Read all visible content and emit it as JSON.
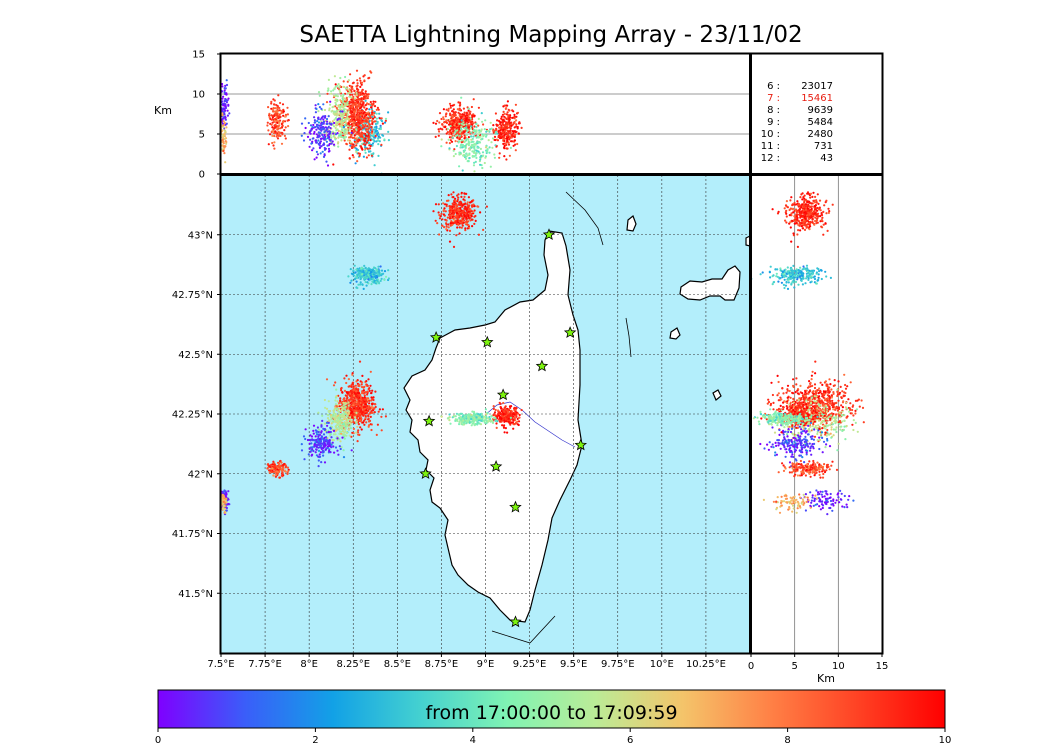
{
  "title": "SAETTA Lightning Mapping Array - 23/11/02",
  "chart_data": {
    "type": "scatter",
    "title": "SAETTA Lightning Mapping Array - 23/11/02",
    "panels": {
      "map": {
        "x_ticks": [
          "7.5°E",
          "7.75°E",
          "8°E",
          "8.25°E",
          "8.5°E",
          "8.75°E",
          "9°E",
          "9.25°E",
          "9.5°E",
          "9.75°E",
          "10°E",
          "10.25°E"
        ],
        "x_tick_values": [
          7.5,
          7.75,
          8.0,
          8.25,
          8.5,
          8.75,
          9.0,
          9.25,
          9.5,
          9.75,
          10.0,
          10.25
        ],
        "y_ticks": [
          "43°N",
          "42.75°N",
          "42.5°N",
          "42.25°N",
          "42°N",
          "41.75°N",
          "41.5°N"
        ],
        "y_tick_values": [
          43.0,
          42.75,
          42.5,
          42.25,
          42.0,
          41.75,
          41.5
        ],
        "xlim": [
          7.5,
          10.5
        ],
        "ylim": [
          41.25,
          43.25
        ],
        "grid": true
      },
      "lon_alt": {
        "ylabel": "Km",
        "y_ticks": [
          "0",
          "5",
          "10",
          "15"
        ],
        "y_tick_values": [
          0,
          5,
          10,
          15
        ],
        "ylim": [
          0,
          15
        ]
      },
      "alt_lat": {
        "xlabel": "Km",
        "x_ticks": [
          "0",
          "5",
          "10",
          "15"
        ],
        "x_tick_values": [
          0,
          5,
          10,
          15
        ],
        "xlim": [
          0,
          15
        ]
      }
    },
    "stations": [
      {
        "lon": 9.36,
        "lat": 43.0
      },
      {
        "lon": 9.48,
        "lat": 42.59
      },
      {
        "lon": 8.72,
        "lat": 42.57
      },
      {
        "lon": 9.01,
        "lat": 42.55
      },
      {
        "lon": 9.32,
        "lat": 42.45
      },
      {
        "lon": 9.1,
        "lat": 42.33
      },
      {
        "lon": 8.68,
        "lat": 42.22
      },
      {
        "lon": 9.54,
        "lat": 42.12
      },
      {
        "lon": 9.06,
        "lat": 42.03
      },
      {
        "lon": 8.66,
        "lat": 42.0
      },
      {
        "lon": 9.17,
        "lat": 41.86
      },
      {
        "lon": 9.17,
        "lat": 41.38
      }
    ],
    "station_counts": [
      {
        "label": "6 :",
        "value": "23017",
        "color": "#000000"
      },
      {
        "label": "7 :",
        "value": "15461",
        "color": "#e81d10"
      },
      {
        "label": "8 :",
        "value": "9639",
        "color": "#000000"
      },
      {
        "label": "9 :",
        "value": "5484",
        "color": "#000000"
      },
      {
        "label": "10 :",
        "value": "2480",
        "color": "#000000"
      },
      {
        "label": "11 :",
        "value": "731",
        "color": "#000000"
      },
      {
        "label": "12 :",
        "value": "43",
        "color": "#000000"
      }
    ],
    "clusters": [
      {
        "lon": 8.85,
        "lat": 43.09,
        "alt": 6.3,
        "time": 9.2,
        "slon": 0.05,
        "slat": 0.035,
        "salt": 1.1,
        "n": 380
      },
      {
        "lon": 8.33,
        "lat": 42.83,
        "alt": 5.3,
        "time": 3.0,
        "slon": 0.045,
        "slat": 0.018,
        "salt": 1.4,
        "n": 240
      },
      {
        "lon": 8.27,
        "lat": 42.29,
        "alt": 7.2,
        "time": 9.1,
        "slon": 0.05,
        "slat": 0.05,
        "salt": 2.0,
        "n": 620
      },
      {
        "lon": 8.17,
        "lat": 42.22,
        "alt": 7.5,
        "time": 5.5,
        "slon": 0.04,
        "slat": 0.04,
        "salt": 2.0,
        "n": 260
      },
      {
        "lon": 8.07,
        "lat": 42.13,
        "alt": 5.2,
        "time": 0.6,
        "slon": 0.04,
        "slat": 0.035,
        "salt": 1.5,
        "n": 200
      },
      {
        "lon": 7.82,
        "lat": 42.02,
        "alt": 6.5,
        "time": 8.8,
        "slon": 0.025,
        "slat": 0.015,
        "salt": 1.3,
        "n": 160
      },
      {
        "lon": 7.52,
        "lat": 41.89,
        "alt": 8.5,
        "time": 0.5,
        "slon": 0.012,
        "slat": 0.02,
        "salt": 1.3,
        "n": 90
      },
      {
        "lon": 7.51,
        "lat": 41.88,
        "alt": 4.5,
        "time": 7.0,
        "slon": 0.01,
        "slat": 0.02,
        "salt": 1.3,
        "n": 70
      },
      {
        "lon": 9.12,
        "lat": 42.24,
        "alt": 5.6,
        "time": 9.4,
        "slon": 0.035,
        "slat": 0.02,
        "salt": 1.4,
        "n": 260
      },
      {
        "lon": 8.93,
        "lat": 42.23,
        "alt": 3.8,
        "time": 4.5,
        "slon": 0.06,
        "slat": 0.012,
        "salt": 1.6,
        "n": 240
      }
    ],
    "colorbar": {
      "label": "from 17:00:00 to 17:09:59",
      "ticks": [
        "0",
        "2",
        "4",
        "6",
        "8",
        "10"
      ],
      "tick_values": [
        0,
        2,
        4,
        6,
        8,
        10
      ],
      "range": [
        0,
        10
      ],
      "colormap": "rainbow",
      "stops": [
        "#7f00ff",
        "#3a5ef9",
        "#12a1e6",
        "#44d1d0",
        "#80f3b3",
        "#bbec97",
        "#f4c46a",
        "#ff8146",
        "#ff4224",
        "#ff0000"
      ]
    },
    "colors": {
      "sea": "#b3eefb",
      "land": "#ffffff",
      "grid": "#333333",
      "river": "#3333cc",
      "station_fill": "#7df40f"
    }
  }
}
